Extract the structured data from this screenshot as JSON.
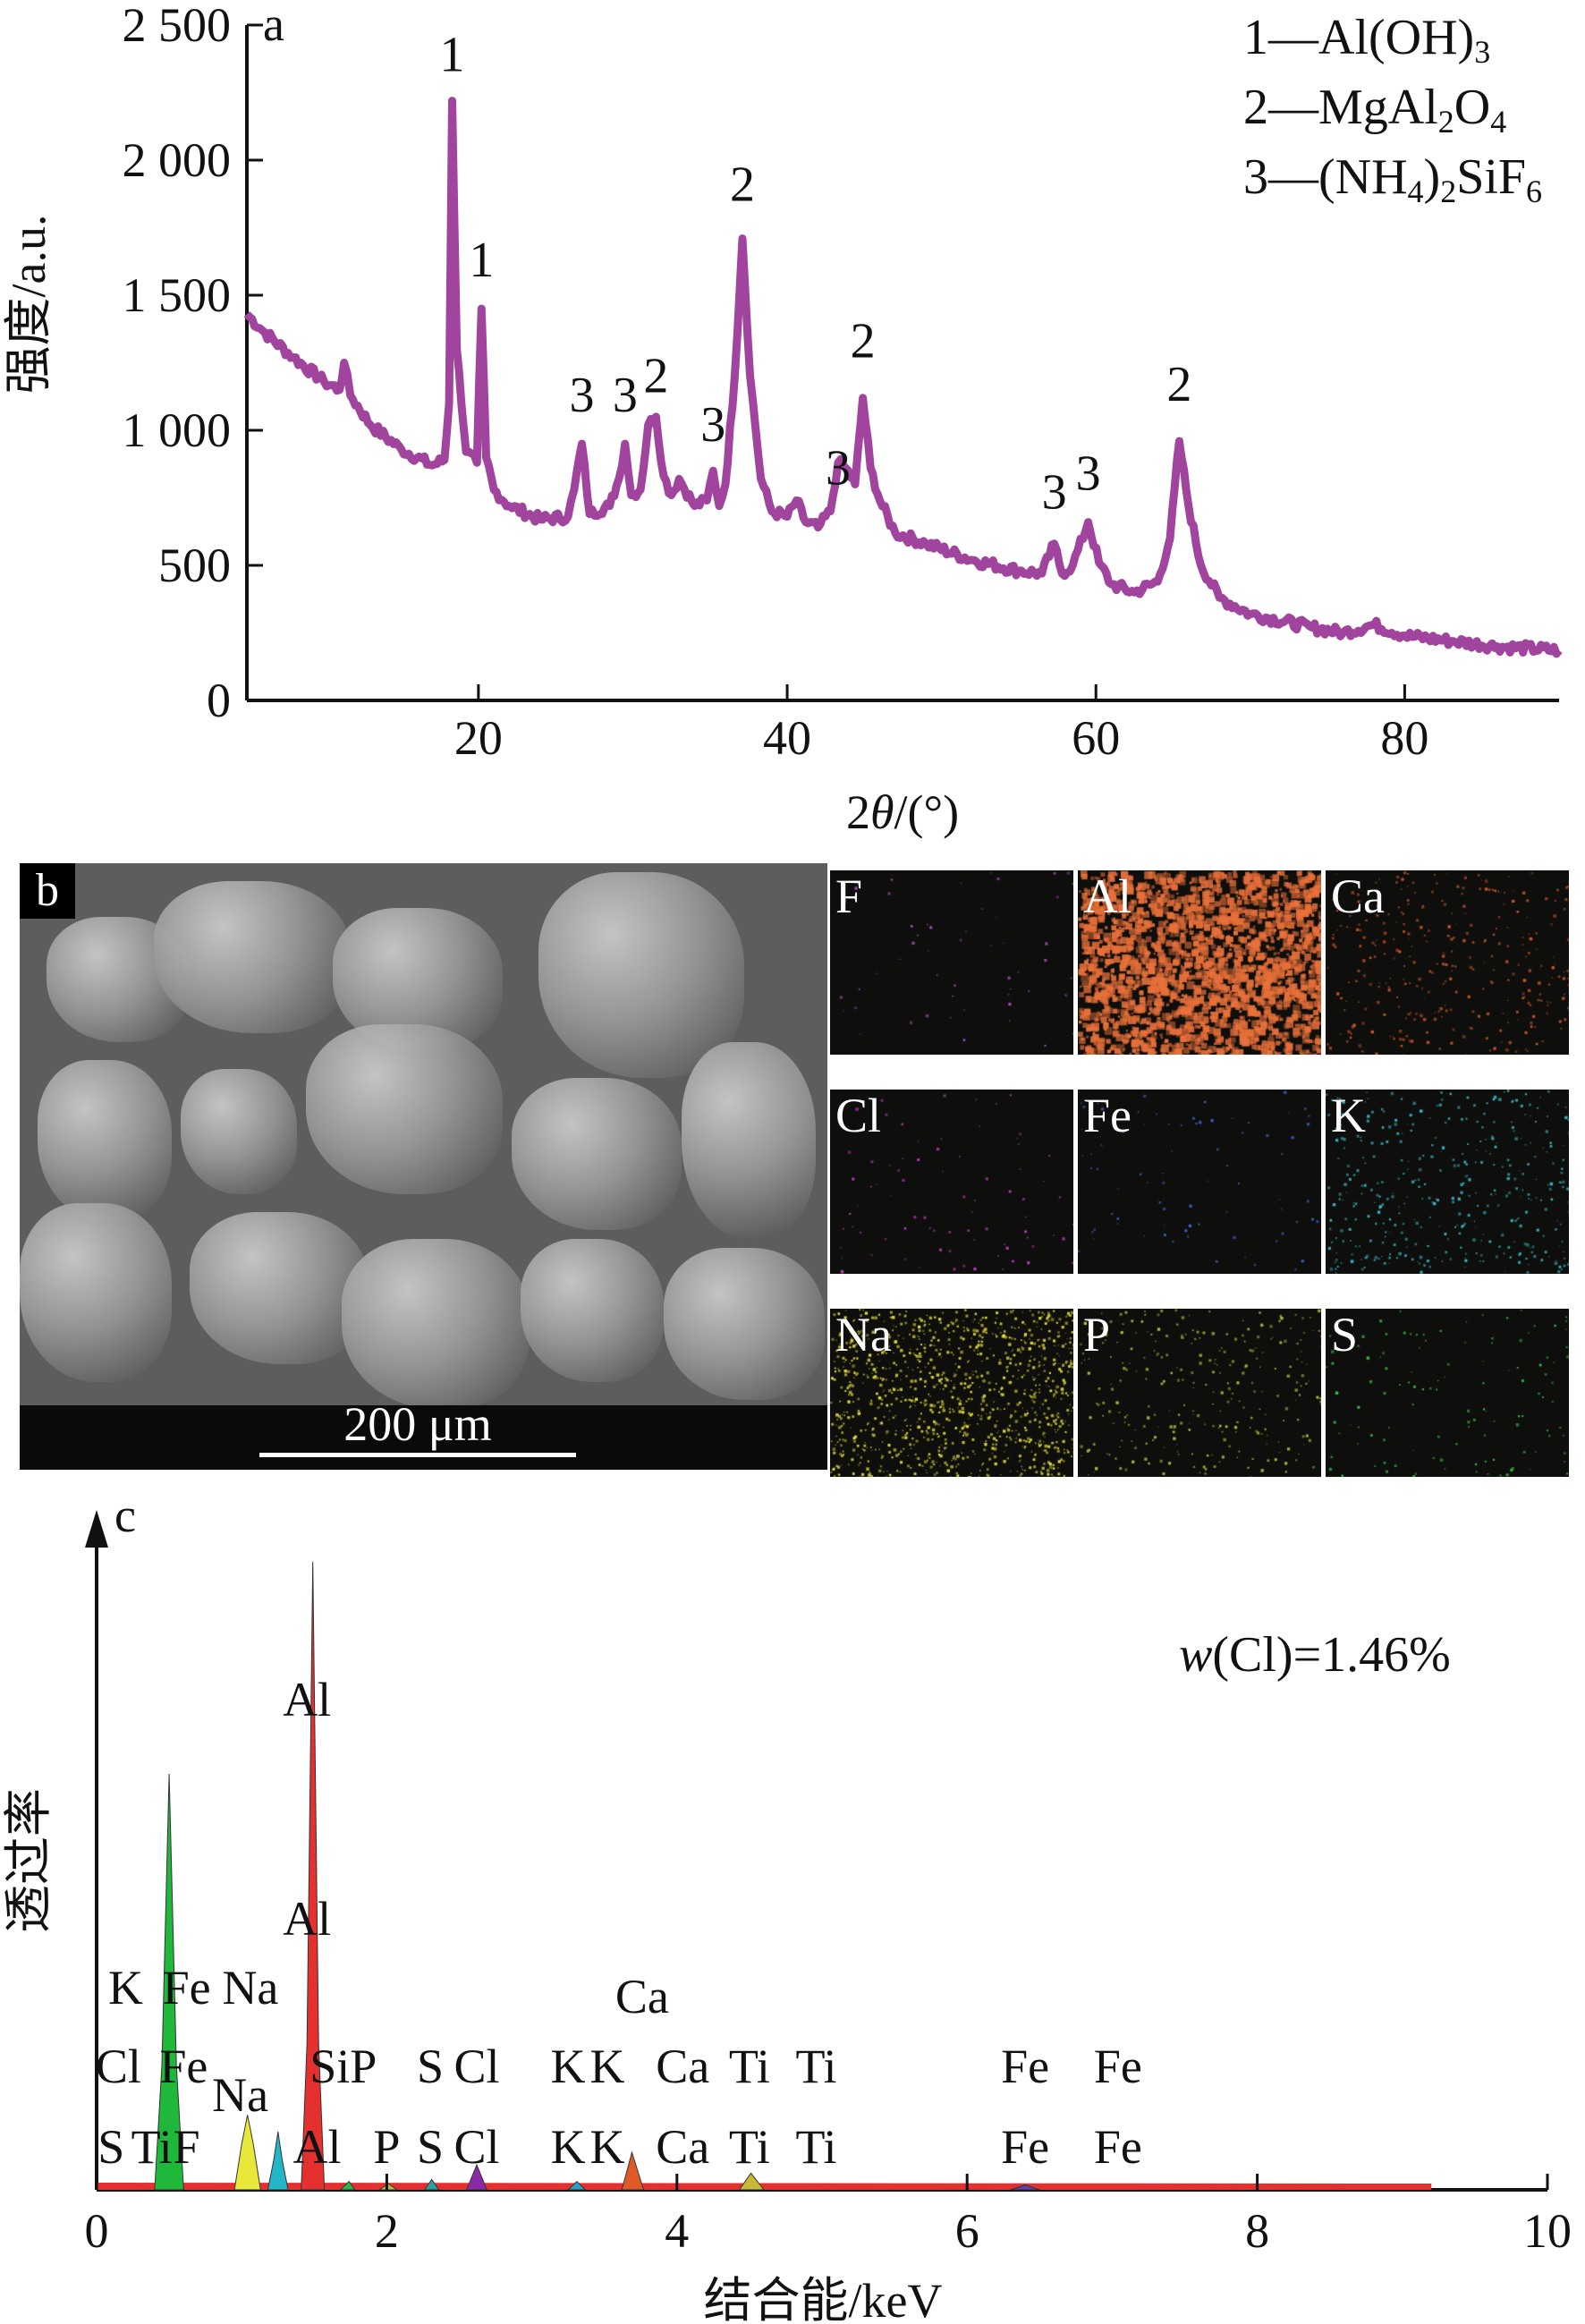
{
  "panel_a": {
    "tag": "a",
    "ylabel": "强度/a.u.",
    "xlabel_theta": "θ",
    "xlabel_pre": "2",
    "xlabel_post": "/(°)",
    "legend": [
      {
        "num": "1",
        "dash": "—",
        "parts": [
          [
            "Al(OH)",
            ""
          ],
          [
            "3",
            "sub"
          ]
        ]
      },
      {
        "num": "2",
        "dash": "—",
        "parts": [
          [
            "MgAl",
            ""
          ],
          [
            "2",
            "sub"
          ],
          [
            "O",
            ""
          ],
          [
            "4",
            "sub"
          ]
        ]
      },
      {
        "num": "3",
        "dash": "—",
        "parts": [
          [
            "(NH",
            ""
          ],
          [
            "4",
            "sub"
          ],
          [
            ")",
            ""
          ],
          [
            "2",
            "sub"
          ],
          [
            "SiF",
            ""
          ],
          [
            "6",
            "sub"
          ]
        ]
      }
    ]
  },
  "panel_b": {
    "tag": "b",
    "scale_bar": "200 μm",
    "maps": [
      {
        "element": "F",
        "color": "#b04ad0",
        "density": 0.02
      },
      {
        "element": "Al",
        "color": "#e8703a",
        "density": 0.75
      },
      {
        "element": "Ca",
        "color": "#d0552a",
        "density": 0.12
      },
      {
        "element": "Cl",
        "color": "#d43ad4",
        "density": 0.03
      },
      {
        "element": "Fe",
        "color": "#3a6ad0",
        "density": 0.03
      },
      {
        "element": "K",
        "color": "#3ab8c8",
        "density": 0.15
      },
      {
        "element": "Na",
        "color": "#e8e040",
        "density": 0.45
      },
      {
        "element": "P",
        "color": "#b8c040",
        "density": 0.12
      },
      {
        "element": "S",
        "color": "#38d048",
        "density": 0.05
      }
    ]
  },
  "panel_c": {
    "tag": "c",
    "ylabel": "透过率",
    "xlabel": "结合能/keV",
    "annotation_w": "w",
    "annotation_rest": "(Cl)=1.46%"
  },
  "chart_data": [
    {
      "type": "line",
      "title": "",
      "xlabel": "2θ/(°)",
      "ylabel": "强度/a.u.",
      "xlim": [
        5,
        90
      ],
      "ylim": [
        0,
        2500
      ],
      "xticks": [
        20,
        40,
        60,
        80
      ],
      "yticks": [
        0,
        500,
        1000,
        1500,
        2000,
        2500
      ],
      "ytick_labels": [
        "0",
        "500",
        "1 000",
        "1 500",
        "2 000",
        "2 500"
      ],
      "line_color": "#a0449e",
      "legend_position": "top-right",
      "series": [
        {
          "x": [
            5,
            6,
            8,
            10,
            11,
            11.3,
            11.7,
            13,
            15,
            17,
            17.8,
            18.1,
            18.3,
            18.6,
            19.2,
            19.9,
            20.2,
            20.5,
            21,
            22,
            24,
            25.8,
            26.2,
            26.7,
            27.2,
            28.5,
            29.1,
            29.5,
            29.9,
            30.5,
            31,
            31.5,
            32,
            32.5,
            33,
            34,
            34.8,
            35.2,
            35.6,
            36,
            36.6,
            37.1,
            37.6,
            38.3,
            39,
            40,
            40.6,
            41.2,
            42,
            42.8,
            43.3,
            43.8,
            44.4,
            44.9,
            45.4,
            46,
            47,
            49,
            52,
            55,
            56.5,
            57.3,
            57.8,
            58.5,
            59.5,
            60.2,
            61,
            62.5,
            64,
            64.8,
            65.4,
            66,
            66.8,
            68,
            70,
            74,
            76,
            78,
            80,
            83,
            86,
            90
          ],
          "y": [
            1430,
            1370,
            1270,
            1180,
            1150,
            1250,
            1130,
            1020,
            930,
            870,
            890,
            1100,
            2220,
            1300,
            920,
            880,
            1450,
            900,
            780,
            720,
            670,
            680,
            780,
            950,
            690,
            720,
            820,
            950,
            760,
            780,
            1020,
            1050,
            830,
            760,
            820,
            720,
            740,
            850,
            720,
            800,
            1200,
            1710,
            1200,
            820,
            700,
            680,
            740,
            660,
            640,
            700,
            880,
            860,
            800,
            1120,
            860,
            740,
            620,
            580,
            520,
            480,
            470,
            580,
            470,
            500,
            660,
            510,
            430,
            400,
            440,
            600,
            960,
            720,
            500,
            380,
            320,
            270,
            250,
            280,
            240,
            220,
            200,
            185
          ]
        }
      ],
      "peak_labels": [
        {
          "label": "1",
          "x": 18.3,
          "y": 2330
        },
        {
          "label": "1",
          "x": 20.2,
          "y": 1570
        },
        {
          "label": "3",
          "x": 26.7,
          "y": 1070
        },
        {
          "label": "3",
          "x": 29.5,
          "y": 1070
        },
        {
          "label": "2",
          "x": 31.5,
          "y": 1140
        },
        {
          "label": "3",
          "x": 35.2,
          "y": 960
        },
        {
          "label": "2",
          "x": 37.1,
          "y": 1850
        },
        {
          "label": "3",
          "x": 43.3,
          "y": 800
        },
        {
          "label": "2",
          "x": 44.9,
          "y": 1270
        },
        {
          "label": "3",
          "x": 57.3,
          "y": 710
        },
        {
          "label": "3",
          "x": 59.5,
          "y": 780
        },
        {
          "label": "2",
          "x": 65.4,
          "y": 1110
        }
      ]
    },
    {
      "type": "area",
      "title": "",
      "xlabel": "结合能/keV",
      "ylabel": "透过率",
      "xlim": [
        0,
        10
      ],
      "xticks": [
        0,
        2,
        4,
        6,
        8,
        10
      ],
      "y_axis": "no tick values (arrow only)",
      "series": [
        {
          "name": "",
          "color": "#1fb83a",
          "x": [
            0.4,
            0.45,
            0.5,
            0.55,
            0.6
          ],
          "y": [
            0,
            30,
            100,
            30,
            0
          ]
        },
        {
          "name": "",
          "color": "#e8e83a",
          "x": [
            0.95,
            1.0,
            1.04,
            1.08,
            1.13
          ],
          "y": [
            0,
            11,
            18,
            11,
            0
          ]
        },
        {
          "name": "",
          "color": "#22b6c6",
          "x": [
            1.18,
            1.22,
            1.25,
            1.28,
            1.32
          ],
          "y": [
            0,
            7,
            14,
            7,
            0
          ]
        },
        {
          "name": "",
          "color": "#e53030",
          "x": [
            1.41,
            1.45,
            1.49,
            1.53,
            1.57
          ],
          "y": [
            0,
            35,
            151,
            35,
            0
          ]
        },
        {
          "name": "",
          "color": "#28b848",
          "x": [
            1.68,
            1.74,
            1.78
          ],
          "y": [
            0,
            2,
            0
          ]
        },
        {
          "name": "",
          "color": "#b8c040",
          "x": [
            1.95,
            2.01,
            2.07
          ],
          "y": [
            0,
            1.5,
            0
          ]
        },
        {
          "name": "",
          "color": "#2aa0a0",
          "x": [
            2.26,
            2.31,
            2.36
          ],
          "y": [
            0,
            2.5,
            0
          ]
        },
        {
          "name": "",
          "color": "#8a2aa8",
          "x": [
            2.55,
            2.62,
            2.69
          ],
          "y": [
            0,
            6,
            0
          ]
        },
        {
          "name": "",
          "color": "#2aa0c0",
          "x": [
            3.25,
            3.31,
            3.37
          ],
          "y": [
            0,
            2,
            0
          ]
        },
        {
          "name": "",
          "color": "#e05a28",
          "x": [
            3.62,
            3.69,
            3.77
          ],
          "y": [
            0,
            9,
            0
          ]
        },
        {
          "name": "",
          "color": "#c8b838",
          "x": [
            4.43,
            4.51,
            4.6
          ],
          "y": [
            0,
            4,
            0
          ]
        },
        {
          "name": "",
          "color": "#6a3ab0",
          "x": [
            6.3,
            6.4,
            6.5
          ],
          "y": [
            0,
            1.2,
            0
          ]
        }
      ],
      "peak_labels": [
        {
          "text": "Al",
          "x": 1.45,
          "row": "top-1"
        },
        {
          "text": "Al",
          "x": 1.45,
          "row": "top-2"
        },
        {
          "text": "K",
          "x": 0.2,
          "row": "r1"
        },
        {
          "text": "Fe",
          "x": 0.62,
          "row": "r1"
        },
        {
          "text": "Na",
          "x": 1.06,
          "row": "r1"
        },
        {
          "text": "Ca",
          "x": 3.76,
          "row": "r1b"
        },
        {
          "text": "Cl",
          "x": 0.15,
          "row": "r2"
        },
        {
          "text": "Fe",
          "x": 0.6,
          "row": "r2"
        },
        {
          "text": "SiP",
          "x": 1.7,
          "row": "r2"
        },
        {
          "text": "S",
          "x": 2.3,
          "row": "r2"
        },
        {
          "text": "Cl",
          "x": 2.62,
          "row": "r2"
        },
        {
          "text": "K",
          "x": 3.25,
          "row": "r2"
        },
        {
          "text": "K",
          "x": 3.52,
          "row": "r2"
        },
        {
          "text": "Ca",
          "x": 4.04,
          "row": "r2"
        },
        {
          "text": "Ti",
          "x": 4.5,
          "row": "r2"
        },
        {
          "text": "Ti",
          "x": 4.96,
          "row": "r2"
        },
        {
          "text": "Fe",
          "x": 6.4,
          "row": "r2"
        },
        {
          "text": "Fe",
          "x": 7.04,
          "row": "r2"
        },
        {
          "text": "Na",
          "x": 0.99,
          "row": "r3"
        },
        {
          "text": "S",
          "x": 0.1,
          "row": "r4"
        },
        {
          "text": "Ti",
          "x": 0.38,
          "row": "r4"
        },
        {
          "text": "F",
          "x": 0.62,
          "row": "r4"
        },
        {
          "text": "Al",
          "x": 1.52,
          "row": "r4"
        },
        {
          "text": "P",
          "x": 2.0,
          "row": "r4"
        },
        {
          "text": "S",
          "x": 2.3,
          "row": "r4"
        },
        {
          "text": "Cl",
          "x": 2.62,
          "row": "r4"
        },
        {
          "text": "K",
          "x": 3.25,
          "row": "r4"
        },
        {
          "text": "K",
          "x": 3.52,
          "row": "r4"
        },
        {
          "text": "Ca",
          "x": 4.04,
          "row": "r4"
        },
        {
          "text": "Ti",
          "x": 4.5,
          "row": "r4"
        },
        {
          "text": "Ti",
          "x": 4.96,
          "row": "r4"
        },
        {
          "text": "Fe",
          "x": 6.4,
          "row": "r4"
        },
        {
          "text": "Fe",
          "x": 7.04,
          "row": "r4"
        }
      ]
    }
  ]
}
